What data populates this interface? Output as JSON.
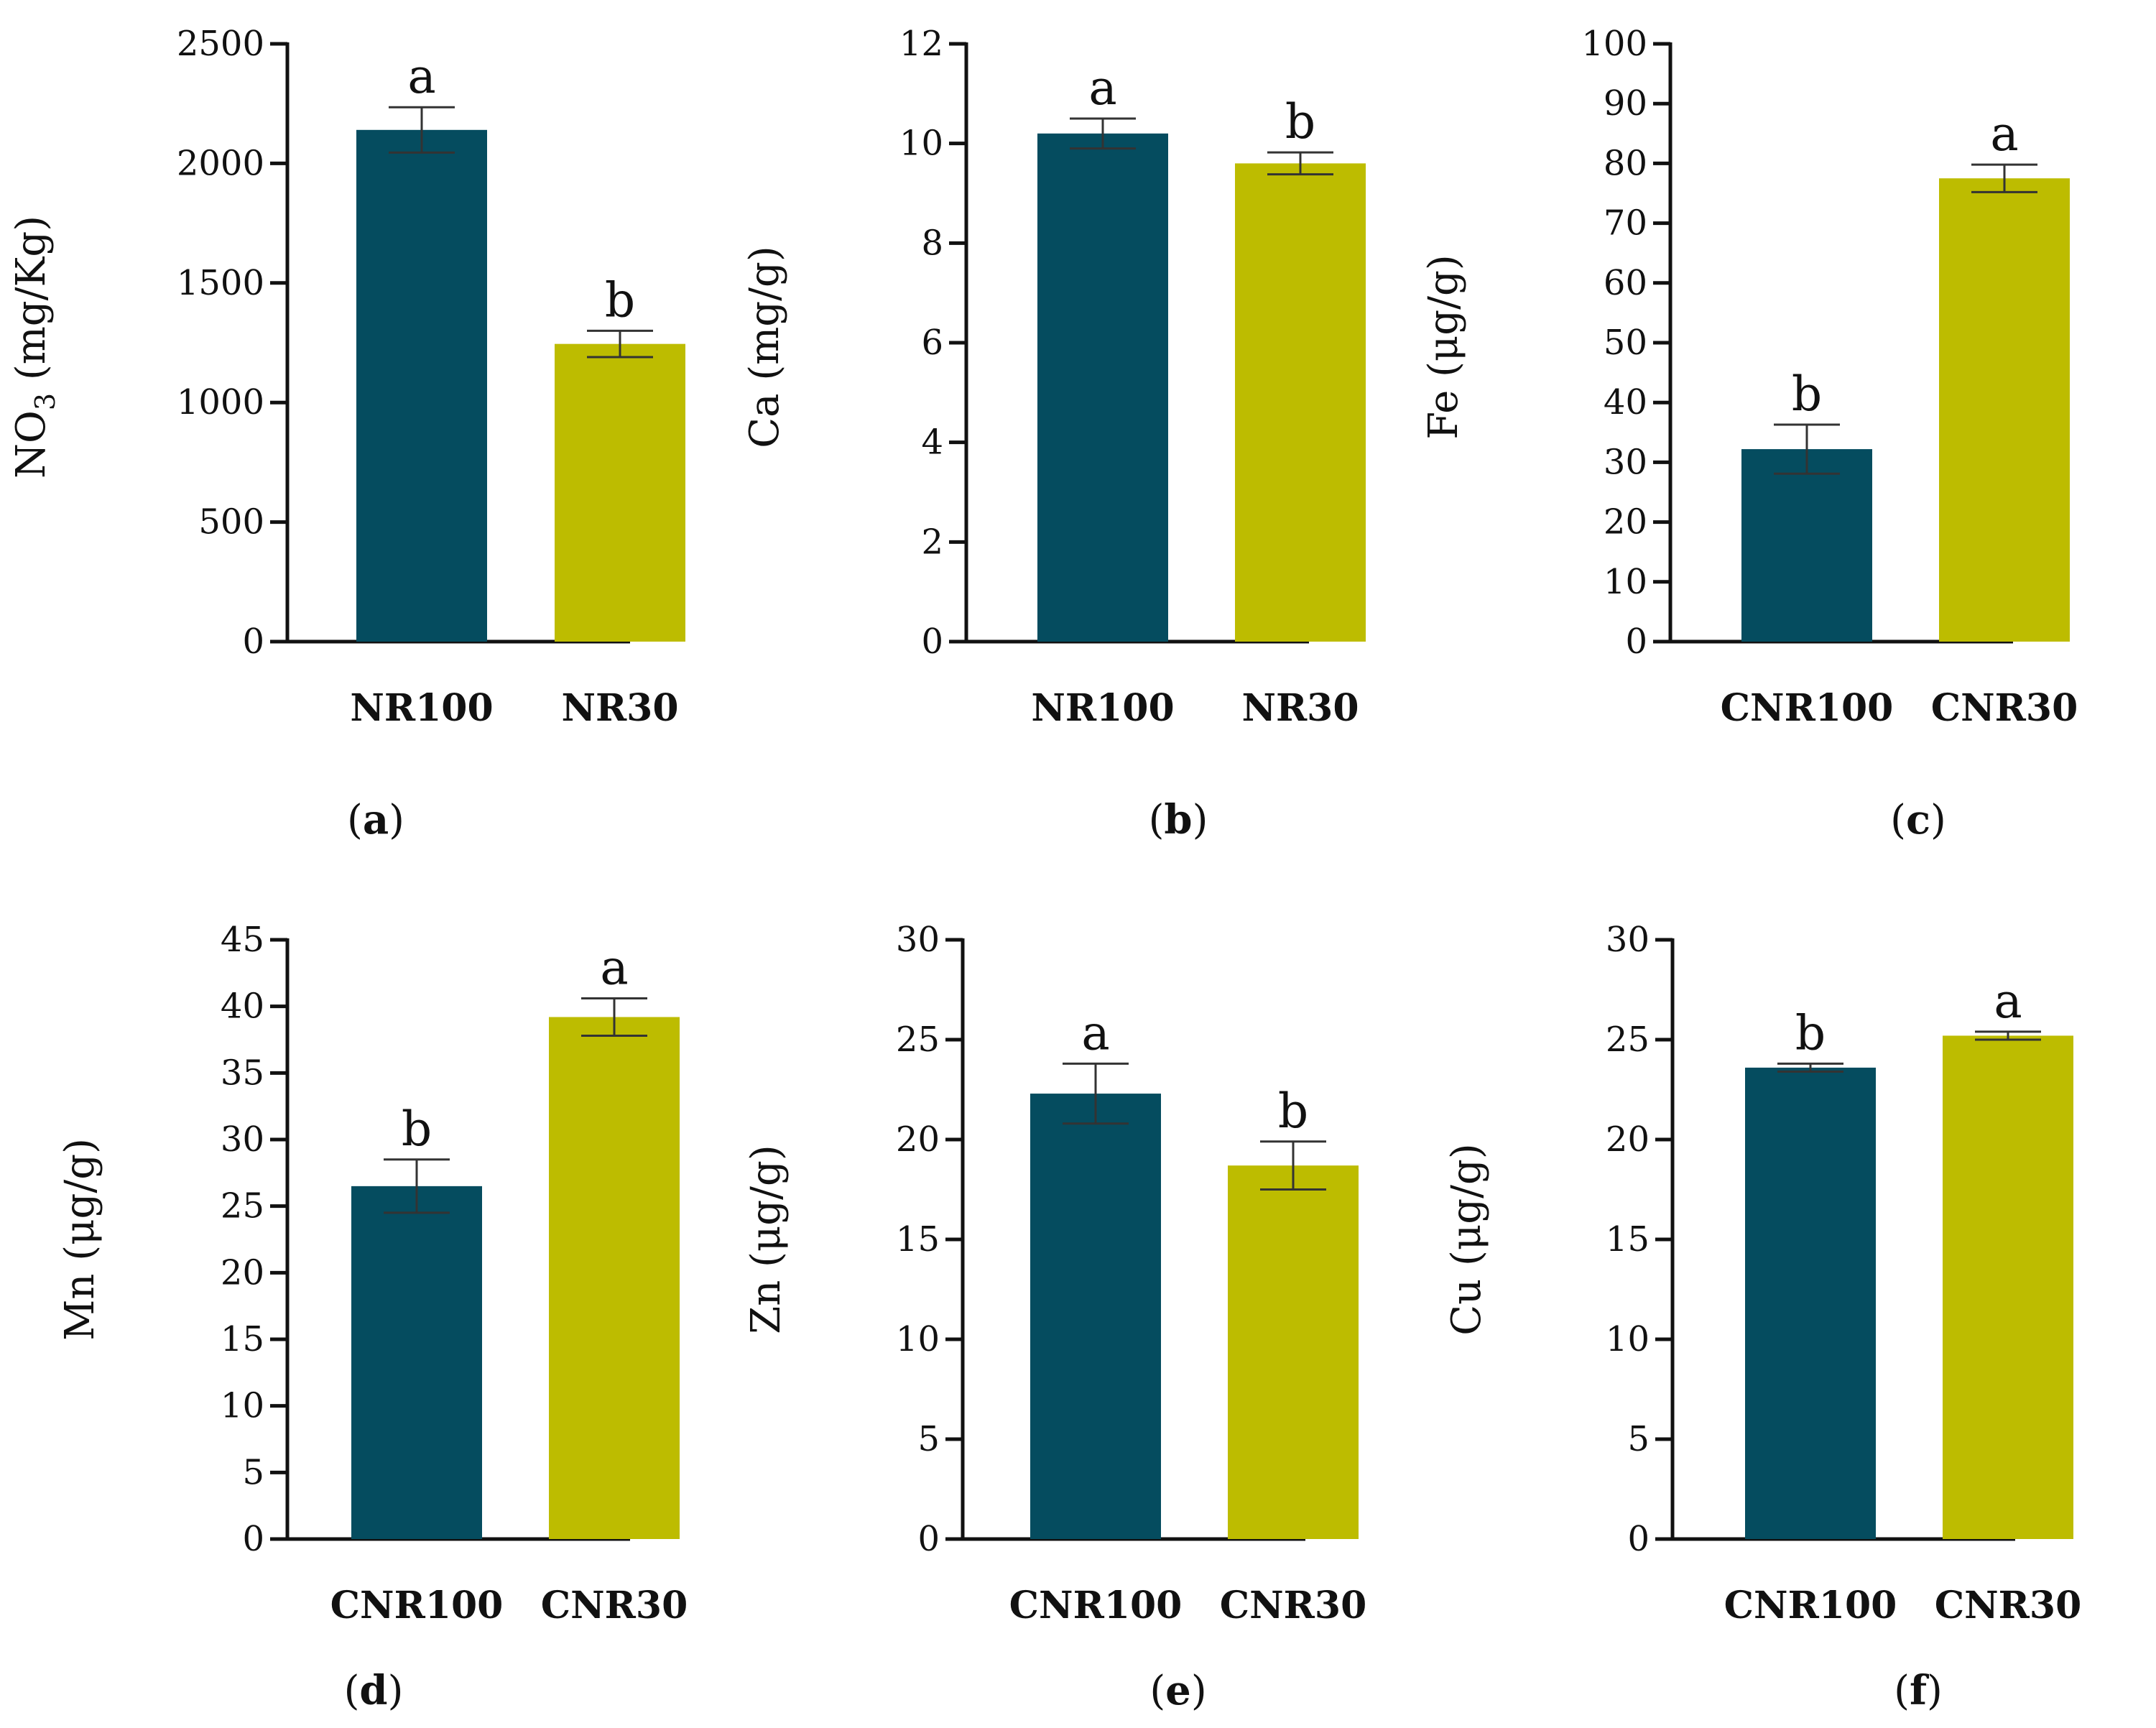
{
  "figure": {
    "colors": {
      "dark": "#054C5F",
      "olive": "#BDBC00",
      "axis": "#111111",
      "error_bar": "#333333"
    },
    "chart_data": [
      {
        "id": "a",
        "type": "bar",
        "panel_label": "(a)",
        "ylabel_main": "NO",
        "ylabel_sub": "3",
        "ylabel_rest": " (mg/Kg)",
        "ylim": [
          0,
          2500
        ],
        "yticks": [
          "0",
          "500",
          "1000",
          "1500",
          "2000",
          "2500"
        ],
        "categories": [
          "NR100",
          "NR30"
        ],
        "values": [
          2140,
          1245
        ],
        "errors": [
          95,
          55
        ],
        "letters": [
          "a",
          "b"
        ]
      },
      {
        "id": "b",
        "type": "bar",
        "panel_label": "(b)",
        "ylabel_main": "Ca (mg/g)",
        "ylabel_sub": "",
        "ylabel_rest": "",
        "ylim": [
          0,
          12
        ],
        "yticks": [
          "0",
          "2",
          "4",
          "6",
          "8",
          "10",
          "12"
        ],
        "categories": [
          "NR100",
          "NR30"
        ],
        "values": [
          10.2,
          9.6
        ],
        "errors": [
          0.3,
          0.22
        ],
        "letters": [
          "a",
          "b"
        ]
      },
      {
        "id": "c",
        "type": "bar",
        "panel_label": "(c)",
        "ylabel_main": "Fe (μg/g)",
        "ylabel_sub": "",
        "ylabel_rest": "",
        "ylim": [
          0,
          100
        ],
        "yticks": [
          "0",
          "10",
          "20",
          "30",
          "40",
          "50",
          "60",
          "70",
          "80",
          "90",
          "100"
        ],
        "categories": [
          "CNR100",
          "CNR30"
        ],
        "values": [
          32.2,
          77.5
        ],
        "errors": [
          4.1,
          2.3
        ],
        "letters": [
          "b",
          "a"
        ]
      },
      {
        "id": "d",
        "type": "bar",
        "panel_label": "(d)",
        "ylabel_main": "Mn (μg/g)",
        "ylabel_sub": "",
        "ylabel_rest": "",
        "ylim": [
          0,
          45
        ],
        "yticks": [
          "0",
          "5",
          "10",
          "15",
          "20",
          "25",
          "30",
          "35",
          "40",
          "45"
        ],
        "categories": [
          "CNR100",
          "CNR30"
        ],
        "values": [
          26.5,
          39.2
        ],
        "errors": [
          2.0,
          1.4
        ],
        "letters": [
          "b",
          "a"
        ]
      },
      {
        "id": "e",
        "type": "bar",
        "panel_label": "(e)",
        "ylabel_main": "Zn (μg/g)",
        "ylabel_sub": "",
        "ylabel_rest": "",
        "ylim": [
          0,
          30
        ],
        "yticks": [
          "0",
          "5",
          "10",
          "15",
          "20",
          "25",
          "30"
        ],
        "categories": [
          "CNR100",
          "CNR30"
        ],
        "values": [
          22.3,
          18.7
        ],
        "errors": [
          1.5,
          1.2
        ],
        "letters": [
          "a",
          "b"
        ]
      },
      {
        "id": "f",
        "type": "bar",
        "panel_label": "(f)",
        "ylabel_main": "Cu (μg/g)",
        "ylabel_sub": "",
        "ylabel_rest": "",
        "ylim": [
          0,
          30
        ],
        "yticks": [
          "0",
          "5",
          "10",
          "15",
          "20",
          "25",
          "30"
        ],
        "categories": [
          "CNR100",
          "CNR30"
        ],
        "values": [
          23.6,
          25.2
        ],
        "errors": [
          0.2,
          0.2
        ],
        "letters": [
          "b",
          "a"
        ]
      }
    ]
  }
}
